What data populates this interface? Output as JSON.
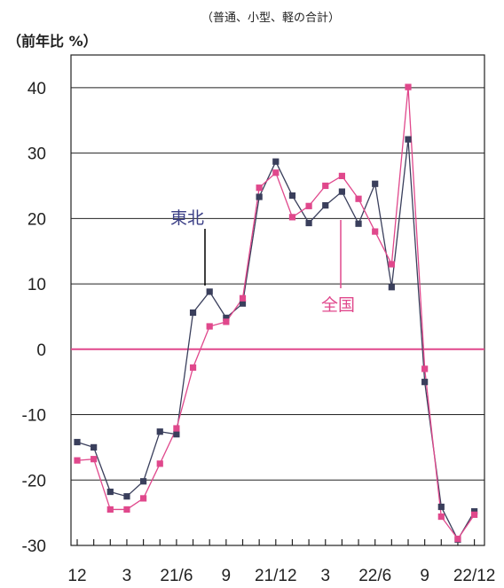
{
  "chart_data": {
    "type": "line",
    "title": "（普通、小型、軽の合計）",
    "ylabel": "（前年比 %）",
    "xlabel": "",
    "ylim": [
      -30,
      45
    ],
    "yticks": [
      40,
      30,
      20,
      10,
      0,
      -10,
      -20,
      -30
    ],
    "xtick_labels": [
      "12",
      "3",
      "21/6",
      "9",
      "21/12",
      "3",
      "22/6",
      "9",
      "22/12"
    ],
    "grid": true,
    "series": [
      {
        "name": "東北",
        "color": "#3a3f5c",
        "values": [
          -14.2,
          -15.0,
          -21.8,
          -22.5,
          -20.2,
          -12.6,
          -13.0,
          5.6,
          8.8,
          4.8,
          7.0,
          23.3,
          28.7,
          23.5,
          19.3,
          22.0,
          24.1,
          19.2,
          25.3,
          9.5,
          32.1,
          -5.0,
          -24.1,
          -29.1,
          -24.8
        ]
      },
      {
        "name": "全国",
        "color": "#e0488c",
        "values": [
          -17.0,
          -16.8,
          -24.5,
          -24.5,
          -22.8,
          -17.5,
          -12.1,
          -2.8,
          3.5,
          4.2,
          7.8,
          24.7,
          27.0,
          20.2,
          21.9,
          25.0,
          26.5,
          23.0,
          18.0,
          13.0,
          40.1,
          -3.0,
          -25.6,
          -29.0,
          -25.3
        ]
      }
    ]
  }
}
